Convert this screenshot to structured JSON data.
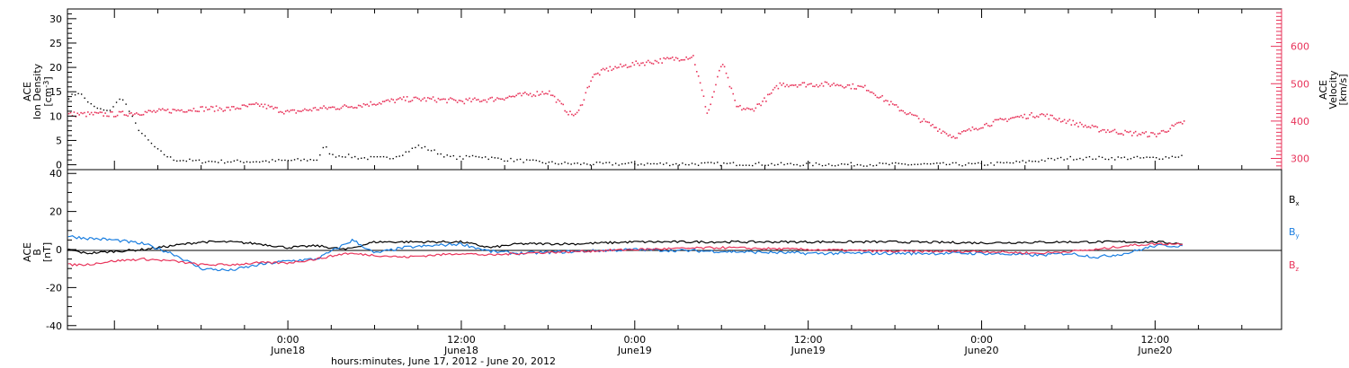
{
  "xaxis": {
    "title": "hours:minutes, June 17, 2012 - June 20, 2012",
    "range_hours": [
      -15.25,
      68.75
    ],
    "ticks": [
      {
        "hour": 0,
        "time": "0:00",
        "date": "June18"
      },
      {
        "hour": 12,
        "time": "12:00",
        "date": "June18"
      },
      {
        "hour": 24,
        "time": "0:00",
        "date": "June19"
      },
      {
        "hour": 36,
        "time": "12:00",
        "date": "June19"
      },
      {
        "hour": 48,
        "time": "0:00",
        "date": "June20"
      },
      {
        "hour": 60,
        "time": "12:00",
        "date": "June20"
      }
    ]
  },
  "panel1": {
    "ylabel_left": [
      "ACE",
      "Ion Density",
      "[cm^-3]"
    ],
    "ylabel_right": [
      "ACE",
      "Velocity",
      "[km/s]"
    ],
    "ylim_left": [
      -1,
      32
    ],
    "yticks_left": [
      0,
      5,
      10,
      15,
      20,
      25,
      30
    ],
    "ylim_right": [
      270,
      700
    ],
    "yticks_right": [
      300,
      400,
      500,
      600
    ],
    "colors": {
      "density": "#000000",
      "velocity": "#e8335a"
    }
  },
  "panel2": {
    "ylabel_left": [
      "ACE",
      "B",
      "[nT]"
    ],
    "ylim": [
      -42,
      42
    ],
    "yticks": [
      -40,
      -20,
      0,
      20,
      40
    ],
    "legend": [
      {
        "label": "B",
        "sub": "x",
        "color": "#000000"
      },
      {
        "label": "B",
        "sub": "y",
        "color": "#1a7ee0"
      },
      {
        "label": "B",
        "sub": "z",
        "color": "#e8335a"
      }
    ]
  },
  "chart_data": [
    {
      "type": "scatter",
      "title": "",
      "xlabel": "hours:minutes, June 17, 2012 - June 20, 2012",
      "ylabel": "ACE Ion Density [cm^-3]",
      "ylim": [
        -1,
        32
      ],
      "series": [
        {
          "name": "Ion Density",
          "x": [
            -15.2,
            -14.5,
            -13.5,
            -12.5,
            -11.5,
            -10.5,
            -10,
            -9,
            -8,
            -7,
            -6,
            -4,
            -2,
            0,
            2,
            2.5,
            3,
            4,
            5,
            6,
            7,
            8,
            9,
            10,
            11,
            12,
            13,
            14,
            15,
            16,
            18,
            20,
            22,
            24,
            26,
            28,
            30,
            32,
            34,
            36,
            38,
            40,
            42,
            44,
            46,
            48,
            50,
            52,
            54,
            56,
            58,
            60,
            62
          ],
          "y": [
            14,
            15,
            12,
            11,
            14,
            8,
            6,
            3,
            1.2,
            1,
            0.8,
            0.8,
            0.8,
            1,
            1.2,
            4,
            2,
            2,
            1.5,
            1.5,
            1.5,
            2.5,
            4,
            3,
            1.8,
            1.5,
            2,
            1.5,
            1.2,
            1,
            0.5,
            0.3,
            0.3,
            0.3,
            0.3,
            0.3,
            0.3,
            0.3,
            0.2,
            0.2,
            0.2,
            0.2,
            0.2,
            0.2,
            0.2,
            0.2,
            0.5,
            1,
            1.5,
            1.5,
            1.5,
            1.5,
            2
          ]
        }
      ]
    },
    {
      "type": "scatter",
      "title": "",
      "ylabel": "ACE Velocity [km/s]",
      "ylim": [
        270,
        700
      ],
      "series": [
        {
          "name": "Velocity",
          "x": [
            -15.2,
            -14,
            -12,
            -10,
            -8,
            -6,
            -4,
            -2,
            0,
            2,
            4,
            6,
            8,
            10,
            12,
            14,
            16,
            18,
            19.5,
            20,
            21,
            22,
            24,
            26,
            28,
            29,
            30,
            31,
            32,
            33,
            34,
            36,
            38,
            40,
            42,
            44,
            46,
            48,
            50,
            52,
            54,
            56,
            58,
            60,
            62
          ],
          "y": [
            420,
            420,
            420,
            425,
            430,
            435,
            435,
            445,
            425,
            435,
            440,
            450,
            460,
            460,
            455,
            460,
            470,
            480,
            420,
            420,
            520,
            540,
            555,
            565,
            575,
            420,
            560,
            440,
            430,
            460,
            500,
            500,
            500,
            490,
            440,
            400,
            360,
            390,
            410,
            420,
            400,
            380,
            370,
            365,
            400
          ]
        }
      ]
    },
    {
      "type": "line",
      "title": "",
      "ylabel": "ACE B [nT]",
      "ylim": [
        -42,
        42
      ],
      "series": [
        {
          "name": "Bx",
          "x": [
            -15.2,
            -14,
            -12,
            -10,
            -8,
            -6,
            -4,
            -2,
            0,
            2,
            4,
            6,
            8,
            10,
            12,
            14,
            16,
            20,
            24,
            30,
            36,
            42,
            48,
            54,
            58,
            60,
            62
          ],
          "y": [
            0,
            -2,
            -1,
            0,
            2,
            4,
            4,
            3,
            1,
            2,
            0,
            4,
            4,
            4,
            4,
            1,
            3,
            3,
            4,
            4,
            4,
            4,
            3.5,
            4,
            4,
            4,
            3
          ]
        },
        {
          "name": "By",
          "x": [
            -15.2,
            -14,
            -12,
            -10,
            -8,
            -6,
            -4,
            -2,
            0,
            2,
            4,
            4.5,
            6,
            8,
            10,
            12,
            14,
            16,
            20,
            24,
            30,
            36,
            42,
            48,
            52,
            54,
            56,
            58,
            60,
            62
          ],
          "y": [
            7,
            6,
            5,
            3,
            -2,
            -10,
            -11,
            -8,
            -6,
            -5,
            3,
            5,
            -2,
            1,
            2,
            3,
            -1,
            -2,
            -1,
            0,
            -1,
            -2,
            -2,
            -2,
            -3,
            -2,
            -4,
            -2,
            2,
            2
          ]
        },
        {
          "name": "Bz",
          "x": [
            -15.2,
            -14,
            -12,
            -10,
            -8,
            -6,
            -4,
            -2,
            0,
            2,
            4,
            6,
            8,
            10,
            12,
            14,
            16,
            20,
            24,
            30,
            36,
            42,
            48,
            52,
            54,
            56,
            58,
            60,
            62
          ],
          "y": [
            -8,
            -8,
            -6,
            -5,
            -6,
            -8,
            -8,
            -7,
            -7,
            -5,
            -2,
            -3,
            -4,
            -3,
            -2,
            -3,
            -2,
            -1,
            0,
            1,
            0,
            -1,
            -1,
            -2,
            -1,
            0,
            2,
            3,
            3
          ]
        }
      ]
    }
  ]
}
